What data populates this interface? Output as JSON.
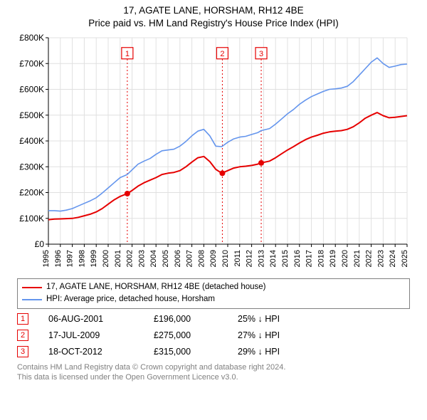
{
  "title_line1": "17, AGATE LANE, HORSHAM, RH12 4BE",
  "title_line2": "Price paid vs. HM Land Registry's House Price Index (HPI)",
  "title_fontsize": 13.5,
  "chart": {
    "type": "line",
    "background_color": "#ffffff",
    "plot_background_color": "#ffffff",
    "grid_color": "#e0e0e0",
    "axis_color": "#000000",
    "x": {
      "min": 1995,
      "max": 2025,
      "labels": [
        "1995",
        "1996",
        "1997",
        "1998",
        "1999",
        "2000",
        "2001",
        "2002",
        "2003",
        "2004",
        "2005",
        "2006",
        "2007",
        "2008",
        "2009",
        "2010",
        "2011",
        "2012",
        "2013",
        "2014",
        "2015",
        "2016",
        "2017",
        "2018",
        "2019",
        "2020",
        "2021",
        "2022",
        "2023",
        "2024",
        "2025"
      ],
      "tick_rotation": -90,
      "tick_fontsize": 11
    },
    "y": {
      "min": 0,
      "max": 800000,
      "step": 100000,
      "labels": [
        "£0",
        "£100K",
        "£200K",
        "£300K",
        "£400K",
        "£500K",
        "£600K",
        "£700K",
        "£800K"
      ],
      "tick_fontsize": 12
    },
    "series": [
      {
        "id": "price_paid",
        "label": "17, AGATE LANE, HORSHAM, RH12 4BE (detached house)",
        "color": "#e60000",
        "line_width": 2,
        "points": [
          [
            1995.0,
            95000
          ],
          [
            1995.5,
            97000
          ],
          [
            1996.0,
            98000
          ],
          [
            1996.5,
            99000
          ],
          [
            1997.0,
            100000
          ],
          [
            1997.5,
            104000
          ],
          [
            1998.0,
            110000
          ],
          [
            1998.5,
            116000
          ],
          [
            1999.0,
            125000
          ],
          [
            1999.5,
            138000
          ],
          [
            2000.0,
            155000
          ],
          [
            2000.5,
            172000
          ],
          [
            2001.0,
            185000
          ],
          [
            2001.6,
            196000
          ],
          [
            2002.0,
            208000
          ],
          [
            2002.5,
            225000
          ],
          [
            2003.0,
            238000
          ],
          [
            2003.5,
            248000
          ],
          [
            2004.0,
            258000
          ],
          [
            2004.5,
            270000
          ],
          [
            2005.0,
            275000
          ],
          [
            2005.5,
            278000
          ],
          [
            2006.0,
            285000
          ],
          [
            2006.5,
            300000
          ],
          [
            2007.0,
            318000
          ],
          [
            2007.5,
            335000
          ],
          [
            2008.0,
            340000
          ],
          [
            2008.5,
            320000
          ],
          [
            2009.0,
            290000
          ],
          [
            2009.5,
            275000
          ],
          [
            2010.0,
            285000
          ],
          [
            2010.5,
            295000
          ],
          [
            2011.0,
            300000
          ],
          [
            2011.5,
            302000
          ],
          [
            2012.0,
            305000
          ],
          [
            2012.5,
            310000
          ],
          [
            2012.8,
            315000
          ],
          [
            2013.5,
            322000
          ],
          [
            2014.0,
            335000
          ],
          [
            2014.5,
            350000
          ],
          [
            2015.0,
            365000
          ],
          [
            2015.5,
            378000
          ],
          [
            2016.0,
            392000
          ],
          [
            2016.5,
            405000
          ],
          [
            2017.0,
            415000
          ],
          [
            2017.5,
            422000
          ],
          [
            2018.0,
            430000
          ],
          [
            2018.5,
            435000
          ],
          [
            2019.0,
            438000
          ],
          [
            2019.5,
            440000
          ],
          [
            2020.0,
            445000
          ],
          [
            2020.5,
            455000
          ],
          [
            2021.0,
            470000
          ],
          [
            2021.5,
            488000
          ],
          [
            2022.0,
            500000
          ],
          [
            2022.5,
            510000
          ],
          [
            2023.0,
            498000
          ],
          [
            2023.5,
            490000
          ],
          [
            2024.0,
            492000
          ],
          [
            2024.5,
            495000
          ],
          [
            2025.0,
            498000
          ]
        ]
      },
      {
        "id": "hpi",
        "label": "HPI: Average price, detached house, Horsham",
        "color": "#6495ed",
        "line_width": 1.6,
        "points": [
          [
            1995.0,
            130000
          ],
          [
            1995.5,
            130000
          ],
          [
            1996.0,
            128000
          ],
          [
            1996.5,
            132000
          ],
          [
            1997.0,
            138000
          ],
          [
            1997.5,
            148000
          ],
          [
            1998.0,
            158000
          ],
          [
            1998.5,
            168000
          ],
          [
            1999.0,
            180000
          ],
          [
            1999.5,
            198000
          ],
          [
            2000.0,
            218000
          ],
          [
            2000.5,
            238000
          ],
          [
            2001.0,
            258000
          ],
          [
            2001.6,
            270000
          ],
          [
            2002.0,
            288000
          ],
          [
            2002.5,
            310000
          ],
          [
            2003.0,
            322000
          ],
          [
            2003.5,
            332000
          ],
          [
            2004.0,
            348000
          ],
          [
            2004.5,
            362000
          ],
          [
            2005.0,
            365000
          ],
          [
            2005.5,
            368000
          ],
          [
            2006.0,
            380000
          ],
          [
            2006.5,
            398000
          ],
          [
            2007.0,
            420000
          ],
          [
            2007.5,
            438000
          ],
          [
            2008.0,
            445000
          ],
          [
            2008.5,
            420000
          ],
          [
            2009.0,
            380000
          ],
          [
            2009.5,
            378000
          ],
          [
            2010.0,
            395000
          ],
          [
            2010.5,
            408000
          ],
          [
            2011.0,
            415000
          ],
          [
            2011.5,
            418000
          ],
          [
            2012.0,
            425000
          ],
          [
            2012.5,
            432000
          ],
          [
            2012.8,
            440000
          ],
          [
            2013.5,
            448000
          ],
          [
            2014.0,
            465000
          ],
          [
            2014.5,
            485000
          ],
          [
            2015.0,
            505000
          ],
          [
            2015.5,
            522000
          ],
          [
            2016.0,
            542000
          ],
          [
            2016.5,
            558000
          ],
          [
            2017.0,
            572000
          ],
          [
            2017.5,
            582000
          ],
          [
            2018.0,
            592000
          ],
          [
            2018.5,
            600000
          ],
          [
            2019.0,
            602000
          ],
          [
            2019.5,
            605000
          ],
          [
            2020.0,
            612000
          ],
          [
            2020.5,
            630000
          ],
          [
            2021.0,
            655000
          ],
          [
            2021.5,
            680000
          ],
          [
            2022.0,
            705000
          ],
          [
            2022.5,
            722000
          ],
          [
            2023.0,
            700000
          ],
          [
            2023.5,
            685000
          ],
          [
            2024.0,
            690000
          ],
          [
            2024.5,
            696000
          ],
          [
            2025.0,
            698000
          ]
        ]
      }
    ],
    "transactions_markers": [
      {
        "n": "1",
        "year": 2001.6,
        "value": 196000,
        "box_color": "#e60000",
        "dash_color": "#e60000"
      },
      {
        "n": "2",
        "year": 2009.55,
        "value": 275000,
        "box_color": "#e60000",
        "dash_color": "#e60000"
      },
      {
        "n": "3",
        "year": 2012.8,
        "value": 315000,
        "box_color": "#e60000",
        "dash_color": "#e60000"
      }
    ],
    "marker_box_label_y_value": 740000
  },
  "legend": {
    "items": [
      {
        "color": "#e60000",
        "label": "17, AGATE LANE, HORSHAM, RH12 4BE (detached house)"
      },
      {
        "color": "#6495ed",
        "label": "HPI: Average price, detached house, Horsham"
      }
    ]
  },
  "transactions": [
    {
      "n": "1",
      "date": "06-AUG-2001",
      "price": "£196,000",
      "diff": "25% ↓ HPI",
      "box_color": "#e60000"
    },
    {
      "n": "2",
      "date": "17-JUL-2009",
      "price": "£275,000",
      "diff": "27% ↓ HPI",
      "box_color": "#e60000"
    },
    {
      "n": "3",
      "date": "18-OCT-2012",
      "price": "£315,000",
      "diff": "29% ↓ HPI",
      "box_color": "#e60000"
    }
  ],
  "footnote_line1": "Contains HM Land Registry data © Crown copyright and database right 2024.",
  "footnote_line2": "This data is licensed under the Open Government Licence v3.0.",
  "footnote_color": "#808080"
}
